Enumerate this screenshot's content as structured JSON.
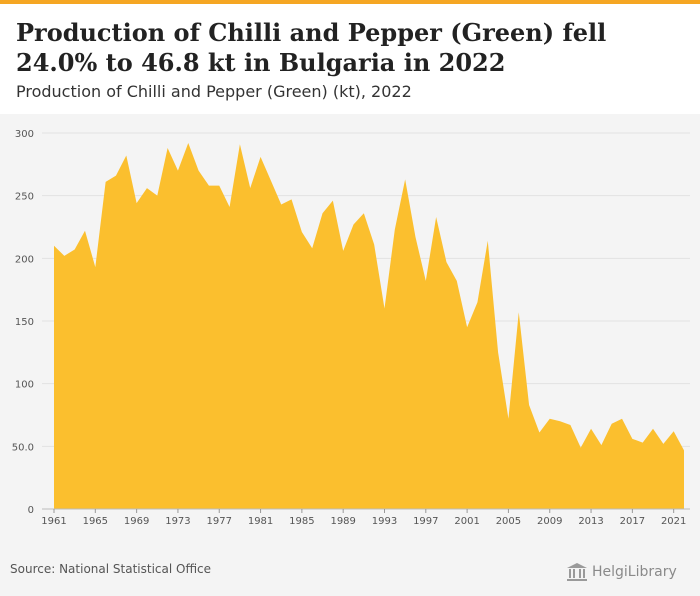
{
  "header": {
    "title": "Production of Chilli and Pepper (Green) fell 24.0% to 46.8 kt in Bulgaria in 2022",
    "subtitle": "Production of Chilli and Pepper (Green) (kt), 2022"
  },
  "footer": {
    "source": "Source: National Statistical Office",
    "logo_text": "HelgiLibrary"
  },
  "colors": {
    "accent": "#f5a623",
    "area_fill": "#fbbf2e",
    "background": "#f4f4f4"
  },
  "chart_data": {
    "type": "area",
    "x": [
      1961,
      1962,
      1963,
      1964,
      1965,
      1966,
      1967,
      1968,
      1969,
      1970,
      1971,
      1972,
      1973,
      1974,
      1975,
      1976,
      1977,
      1978,
      1979,
      1980,
      1981,
      1982,
      1983,
      1984,
      1985,
      1986,
      1987,
      1988,
      1989,
      1990,
      1991,
      1992,
      1993,
      1994,
      1995,
      1996,
      1997,
      1998,
      1999,
      2000,
      2001,
      2002,
      2003,
      2004,
      2005,
      2006,
      2007,
      2008,
      2009,
      2010,
      2011,
      2012,
      2013,
      2014,
      2015,
      2016,
      2017,
      2018,
      2019,
      2020,
      2021,
      2022
    ],
    "values": [
      210,
      202,
      207,
      222,
      193,
      261,
      266,
      282,
      244,
      256,
      250,
      288,
      270,
      292,
      270,
      258,
      258,
      241,
      291,
      256,
      281,
      262,
      243,
      247,
      221,
      208,
      236,
      246,
      206,
      227,
      236,
      211,
      160,
      223,
      263,
      217,
      182,
      233,
      197,
      182,
      145,
      165,
      214,
      125,
      72,
      157,
      83,
      61,
      72,
      70,
      67,
      49,
      64,
      51,
      68,
      72,
      56,
      53,
      64,
      52,
      62,
      46.8
    ],
    "ylim": [
      0,
      300
    ],
    "y_ticks": [
      "0",
      "50.0",
      "100",
      "150",
      "200",
      "250",
      "300"
    ],
    "y_tick_values": [
      0,
      50,
      100,
      150,
      200,
      250,
      300
    ],
    "x_ticks": [
      "1961",
      "1965",
      "1969",
      "1973",
      "1977",
      "1981",
      "1985",
      "1989",
      "1993",
      "1997",
      "2001",
      "2005",
      "2009",
      "2013",
      "2017",
      "2021"
    ],
    "grid": true,
    "xlabel": "",
    "ylabel": ""
  }
}
